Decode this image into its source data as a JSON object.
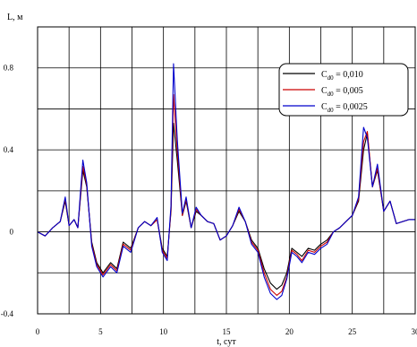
{
  "chart_data": {
    "type": "line",
    "ylabel": "L, м",
    "xlabel": "t, сут",
    "xlim": [
      0,
      30
    ],
    "ylim": [
      -0.4,
      1.0
    ],
    "x_ticks": [
      0,
      5,
      10,
      15,
      20,
      25,
      30
    ],
    "x_tick_labels": [
      "0",
      "5",
      "10",
      "15",
      "20",
      "25",
      "30"
    ],
    "y_ticks": [
      -0.4,
      0,
      0.4,
      0.8
    ],
    "y_tick_labels": [
      "-0.4",
      "0",
      "0.4",
      "0.8"
    ],
    "grid": true,
    "legend_position": "top-right",
    "series": [
      {
        "name_main": "C",
        "name_sub": "d0",
        "name_rest": " = 0,010",
        "color": "#000000",
        "x": [
          0,
          0.6,
          1.2,
          1.8,
          2.2,
          2.5,
          2.9,
          3.2,
          3.6,
          3.9,
          4.3,
          4.7,
          5.2,
          5.8,
          6.3,
          6.8,
          7.4,
          8.0,
          8.5,
          9.0,
          9.5,
          9.9,
          10.3,
          10.6,
          10.8,
          11.1,
          11.5,
          11.8,
          12.2,
          12.6,
          13.0,
          13.5,
          14.0,
          14.5,
          15.0,
          15.5,
          16.0,
          16.5,
          17.0,
          17.5,
          18.0,
          18.5,
          19.0,
          19.4,
          19.8,
          20.2,
          20.6,
          21.0,
          21.5,
          22.0,
          22.5,
          23.0,
          23.5,
          24.0,
          24.5,
          25.0,
          25.5,
          25.9,
          26.2,
          26.6,
          27.0,
          27.5,
          28.0,
          28.5,
          29.0,
          29.5,
          30.0
        ],
        "y": [
          0,
          -0.02,
          0.02,
          0.05,
          0.15,
          0.03,
          0.06,
          0.02,
          0.3,
          0.22,
          -0.05,
          -0.15,
          -0.2,
          -0.15,
          -0.18,
          -0.05,
          -0.08,
          0.02,
          0.05,
          0.03,
          0.06,
          -0.08,
          -0.12,
          0.1,
          0.53,
          0.35,
          0.08,
          0.15,
          0.02,
          0.1,
          0.08,
          0.05,
          0.04,
          -0.04,
          -0.02,
          0.03,
          0.1,
          0.05,
          -0.04,
          -0.08,
          -0.18,
          -0.25,
          -0.28,
          -0.26,
          -0.2,
          -0.08,
          -0.1,
          -0.12,
          -0.08,
          -0.09,
          -0.06,
          -0.04,
          0.0,
          0.02,
          0.05,
          0.08,
          0.15,
          0.4,
          0.48,
          0.22,
          0.3,
          0.1,
          0.15,
          0.04,
          0.05,
          0.06,
          0.06
        ]
      },
      {
        "name_main": "C",
        "name_sub": "d0",
        "name_rest": " = 0,005",
        "color": "#cc0000",
        "x": [
          0,
          0.6,
          1.2,
          1.8,
          2.2,
          2.5,
          2.9,
          3.2,
          3.6,
          3.9,
          4.3,
          4.7,
          5.2,
          5.8,
          6.3,
          6.8,
          7.4,
          8.0,
          8.5,
          9.0,
          9.5,
          9.9,
          10.3,
          10.6,
          10.8,
          11.1,
          11.5,
          11.8,
          12.2,
          12.6,
          13.0,
          13.5,
          14.0,
          14.5,
          15.0,
          15.5,
          16.0,
          16.5,
          17.0,
          17.5,
          18.0,
          18.5,
          19.0,
          19.4,
          19.8,
          20.2,
          20.6,
          21.0,
          21.5,
          22.0,
          22.5,
          23.0,
          23.5,
          24.0,
          24.5,
          25.0,
          25.5,
          25.9,
          26.2,
          26.6,
          27.0,
          27.5,
          28.0,
          28.5,
          29.0,
          29.5,
          30.0
        ],
        "y": [
          0,
          -0.02,
          0.02,
          0.05,
          0.16,
          0.03,
          0.06,
          0.02,
          0.32,
          0.23,
          -0.06,
          -0.16,
          -0.21,
          -0.16,
          -0.19,
          -0.06,
          -0.09,
          0.02,
          0.05,
          0.03,
          0.06,
          -0.09,
          -0.13,
          0.11,
          0.67,
          0.4,
          0.08,
          0.16,
          0.02,
          0.11,
          0.08,
          0.05,
          0.04,
          -0.04,
          -0.02,
          0.03,
          0.11,
          0.05,
          -0.05,
          -0.09,
          -0.2,
          -0.28,
          -0.31,
          -0.29,
          -0.22,
          -0.09,
          -0.11,
          -0.14,
          -0.09,
          -0.1,
          -0.07,
          -0.05,
          0.0,
          0.02,
          0.05,
          0.08,
          0.16,
          0.44,
          0.49,
          0.22,
          0.31,
          0.1,
          0.15,
          0.04,
          0.05,
          0.06,
          0.06
        ]
      },
      {
        "name_main": "C",
        "name_sub": "d0",
        "name_rest": " = 0,0025",
        "color": "#0000cc",
        "x": [
          0,
          0.6,
          1.2,
          1.8,
          2.2,
          2.5,
          2.9,
          3.2,
          3.6,
          3.9,
          4.3,
          4.7,
          5.2,
          5.8,
          6.3,
          6.8,
          7.4,
          8.0,
          8.5,
          9.0,
          9.5,
          9.9,
          10.3,
          10.6,
          10.8,
          11.1,
          11.5,
          11.8,
          12.2,
          12.6,
          13.0,
          13.5,
          14.0,
          14.5,
          15.0,
          15.5,
          16.0,
          16.5,
          17.0,
          17.5,
          18.0,
          18.5,
          19.0,
          19.4,
          19.8,
          20.2,
          20.6,
          21.0,
          21.5,
          22.0,
          22.5,
          23.0,
          23.5,
          24.0,
          24.5,
          25.0,
          25.5,
          25.9,
          26.2,
          26.6,
          27.0,
          27.5,
          28.0,
          28.5,
          29.0,
          29.5,
          30.0
        ],
        "y": [
          0,
          -0.02,
          0.02,
          0.05,
          0.17,
          0.03,
          0.06,
          0.02,
          0.35,
          0.24,
          -0.07,
          -0.17,
          -0.22,
          -0.17,
          -0.2,
          -0.07,
          -0.1,
          0.02,
          0.05,
          0.03,
          0.07,
          -0.1,
          -0.14,
          0.13,
          0.82,
          0.45,
          0.09,
          0.17,
          0.02,
          0.12,
          0.08,
          0.05,
          0.04,
          -0.04,
          -0.02,
          0.03,
          0.12,
          0.05,
          -0.06,
          -0.1,
          -0.22,
          -0.3,
          -0.33,
          -0.31,
          -0.23,
          -0.1,
          -0.12,
          -0.15,
          -0.1,
          -0.11,
          -0.08,
          -0.06,
          0.0,
          0.02,
          0.05,
          0.08,
          0.17,
          0.51,
          0.46,
          0.22,
          0.33,
          0.1,
          0.15,
          0.04,
          0.05,
          0.06,
          0.06
        ]
      }
    ]
  }
}
